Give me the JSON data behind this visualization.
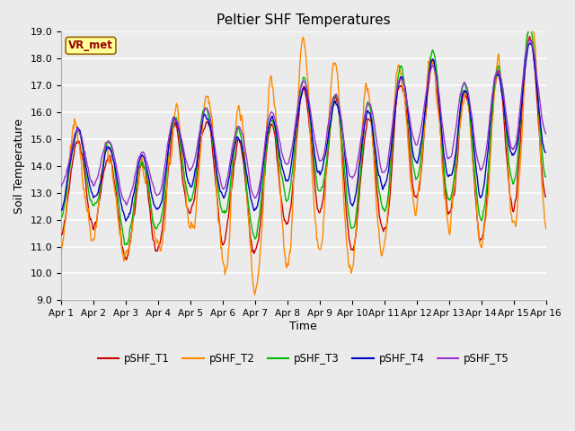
{
  "title": "Peltier SHF Temperatures",
  "xlabel": "Time",
  "ylabel": "Soil Temperature",
  "ylim": [
    9.0,
    19.0
  ],
  "yticks": [
    9.0,
    10.0,
    11.0,
    12.0,
    13.0,
    14.0,
    15.0,
    16.0,
    17.0,
    18.0,
    19.0
  ],
  "xtick_labels": [
    "Apr 1",
    "Apr 2",
    "Apr 3",
    "Apr 4",
    "Apr 5",
    "Apr 6",
    "Apr 7",
    "Apr 8",
    "Apr 9",
    "Apr 10",
    "Apr 11",
    "Apr 12",
    "Apr 13",
    "Apr 14",
    "Apr 15",
    "Apr 16"
  ],
  "background_color": "#ebebeb",
  "axes_facecolor": "#ebebeb",
  "grid_color": "#ffffff",
  "series": {
    "pSHF_T1": {
      "color": "#cc0000",
      "lw": 1.0
    },
    "pSHF_T2": {
      "color": "#ff8800",
      "lw": 1.0
    },
    "pSHF_T3": {
      "color": "#00bb00",
      "lw": 1.0
    },
    "pSHF_T4": {
      "color": "#0000cc",
      "lw": 1.0
    },
    "pSHF_T5": {
      "color": "#9933cc",
      "lw": 1.0
    }
  },
  "vr_met_label": "VR_met",
  "n_points": 720
}
